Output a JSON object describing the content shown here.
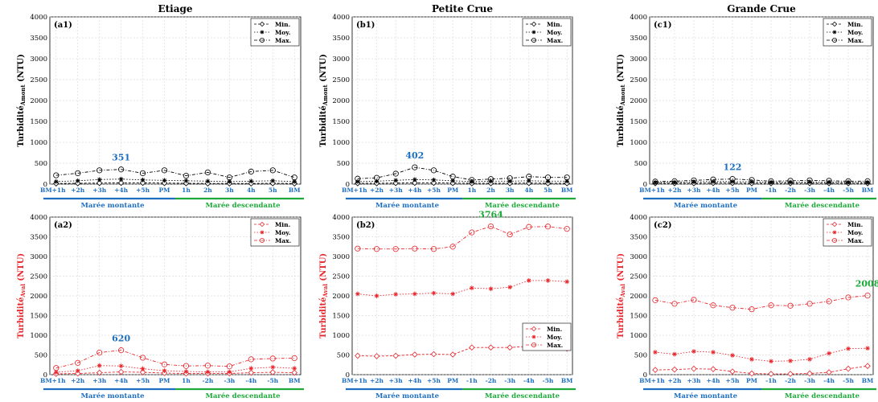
{
  "chart_data": [
    {
      "id": "a1",
      "type": "line",
      "title": "Etiage",
      "panel_label": "(a1)",
      "ylabel_main": "Turbidité",
      "ylabel_sub": "Amont",
      "ylabel_unit": " (NTU)",
      "ylim": [
        0,
        4000
      ],
      "yticks": [
        0,
        500,
        1000,
        1500,
        2000,
        2500,
        3000,
        3500,
        4000
      ],
      "categories": [
        "BM+1h",
        "+2h",
        "+3h",
        "+4h",
        "+5h",
        "PM",
        "1h",
        "2h",
        "3h",
        "4h",
        "5h",
        "BM"
      ],
      "series": [
        {
          "name": "Min.",
          "marker": "diamond",
          "values": [
            15,
            20,
            25,
            30,
            30,
            25,
            20,
            15,
            15,
            15,
            20,
            15
          ]
        },
        {
          "name": "Moy.",
          "marker": "star",
          "values": [
            60,
            80,
            110,
            120,
            100,
            90,
            80,
            70,
            60,
            70,
            80,
            60
          ]
        },
        {
          "name": "Max.",
          "marker": "circle",
          "values": [
            210,
            260,
            330,
            351,
            260,
            330,
            200,
            280,
            160,
            300,
            330,
            160
          ]
        }
      ],
      "annotation": {
        "text": "351",
        "index": 3,
        "value": 351
      },
      "phases": [
        {
          "label": "Marée montante",
          "color": "#1f6fc1"
        },
        {
          "label": "Marée descendante",
          "color": "#1faa3b"
        }
      ]
    },
    {
      "id": "b1",
      "type": "line",
      "title": "Petite Crue",
      "panel_label": "(b1)",
      "ylabel_main": "Turbidité",
      "ylabel_sub": "Amont",
      "ylabel_unit": " (NTU)",
      "ylim": [
        0,
        4000
      ],
      "yticks": [
        0,
        500,
        1000,
        1500,
        2000,
        2500,
        3000,
        3500,
        4000
      ],
      "categories": [
        "BM+1h",
        "+2h",
        "+3h",
        "+4h",
        "+5h",
        "PM",
        "1h",
        "2h",
        "3h",
        "4h",
        "5h",
        "BM"
      ],
      "series": [
        {
          "name": "Min.",
          "marker": "diamond",
          "values": [
            20,
            20,
            25,
            30,
            30,
            25,
            20,
            20,
            20,
            25,
            20,
            20
          ]
        },
        {
          "name": "Moy.",
          "marker": "star",
          "values": [
            60,
            70,
            90,
            110,
            100,
            80,
            60,
            70,
            70,
            80,
            70,
            70
          ]
        },
        {
          "name": "Max.",
          "marker": "circle",
          "values": [
            130,
            150,
            250,
            402,
            330,
            180,
            100,
            120,
            140,
            180,
            160,
            160
          ]
        }
      ],
      "annotation": {
        "text": "402",
        "index": 3,
        "value": 402
      },
      "phases": [
        {
          "label": "Marée montante",
          "color": "#1f6fc1"
        },
        {
          "label": "Marée descendante",
          "color": "#1faa3b"
        }
      ]
    },
    {
      "id": "c1",
      "type": "line",
      "title": "Grande Crue",
      "panel_label": "(c1)",
      "ylabel_main": "Turbidité",
      "ylabel_sub": "Amont",
      "ylabel_unit": " (NTU)",
      "ylim": [
        0,
        4000
      ],
      "yticks": [
        0,
        500,
        1000,
        1500,
        2000,
        2500,
        3000,
        3500,
        4000
      ],
      "categories": [
        "BM+1h",
        "+2h",
        "+3h",
        "+4h",
        "+5h",
        "PM",
        "-1h",
        "-2h",
        "-3h",
        "-4h",
        "-5h",
        "BM"
      ],
      "series": [
        {
          "name": "Min.",
          "marker": "diamond",
          "values": [
            20,
            20,
            20,
            25,
            25,
            20,
            20,
            20,
            20,
            20,
            20,
            20
          ]
        },
        {
          "name": "Moy.",
          "marker": "star",
          "values": [
            40,
            45,
            55,
            60,
            60,
            55,
            45,
            45,
            50,
            45,
            45,
            40
          ]
        },
        {
          "name": "Max.",
          "marker": "circle",
          "values": [
            60,
            70,
            90,
            110,
            122,
            100,
            70,
            80,
            90,
            80,
            70,
            70
          ]
        }
      ],
      "annotation": {
        "text": "122",
        "index": 4,
        "value": 122
      },
      "phases": [
        {
          "label": "Marée montante",
          "color": "#1f6fc1"
        },
        {
          "label": "Marée descendante",
          "color": "#1faa3b"
        }
      ]
    },
    {
      "id": "a2",
      "type": "line",
      "panel_label": "(a2)",
      "ylabel_main": "Turbidité",
      "ylabel_sub": "Aval",
      "ylabel_unit": " (NTU)",
      "ylim": [
        0,
        4000
      ],
      "yticks": [
        0,
        500,
        1000,
        1500,
        2000,
        2500,
        3000,
        3500,
        4000
      ],
      "categories": [
        "BM+1h",
        "+2h",
        "+3h",
        "+4h",
        "+5h",
        "PM",
        "1h",
        "-2h",
        "-3h",
        "-4h",
        "-5h",
        "BM"
      ],
      "series": [
        {
          "name": "Min.",
          "marker": "diamond",
          "values": [
            20,
            30,
            50,
            70,
            60,
            40,
            30,
            30,
            30,
            50,
            60,
            50
          ]
        },
        {
          "name": "Moy.",
          "marker": "star",
          "values": [
            60,
            100,
            230,
            220,
            150,
            100,
            80,
            70,
            70,
            160,
            190,
            160
          ]
        },
        {
          "name": "Max.",
          "marker": "circle",
          "values": [
            170,
            300,
            560,
            620,
            430,
            260,
            220,
            230,
            210,
            390,
            410,
            420
          ]
        }
      ],
      "annotation": {
        "text": "620",
        "index": 3,
        "value": 620
      },
      "legend_position": "top-right",
      "phases": [
        {
          "label": "Marée montante",
          "color": "#1f6fc1"
        },
        {
          "label": "Marée descendante",
          "color": "#1faa3b"
        }
      ]
    },
    {
      "id": "b2",
      "type": "line",
      "panel_label": "(b2)",
      "ylabel_main": "Turbidité",
      "ylabel_sub": "Aval",
      "ylabel_unit": " (NTU)",
      "ylim": [
        0,
        4000
      ],
      "yticks": [
        0,
        500,
        1000,
        1500,
        2000,
        2500,
        3000,
        3500,
        4000
      ],
      "categories": [
        "BM+1h",
        "+2h",
        "+3h",
        "+4h",
        "+5h",
        "PM",
        "-1h",
        "-2h",
        "-3h",
        "-4h",
        "-5h",
        "BM"
      ],
      "series": [
        {
          "name": "Min.",
          "marker": "diamond",
          "values": [
            480,
            470,
            480,
            510,
            520,
            510,
            690,
            690,
            690,
            720,
            690,
            660
          ]
        },
        {
          "name": "Moy.",
          "marker": "star",
          "values": [
            2050,
            2000,
            2040,
            2050,
            2070,
            2050,
            2200,
            2180,
            2220,
            2390,
            2390,
            2360
          ]
        },
        {
          "name": "Max.",
          "marker": "circle",
          "values": [
            3200,
            3190,
            3190,
            3200,
            3190,
            3250,
            3610,
            3764,
            3560,
            3750,
            3760,
            3700
          ]
        }
      ],
      "annotation": {
        "text": "3764",
        "index": 7,
        "value": 3764
      },
      "legend_position": "bottom-right",
      "phases": [
        {
          "label": "Marée montante",
          "color": "#1f6fc1"
        },
        {
          "label": "Marée descendante",
          "color": "#1faa3b"
        }
      ]
    },
    {
      "id": "c2",
      "type": "line",
      "panel_label": "(c2)",
      "ylabel_main": "Turbidité",
      "ylabel_sub": "Aval",
      "ylabel_unit": " (NTU)",
      "ylim": [
        0,
        4000
      ],
      "yticks": [
        0,
        500,
        1000,
        1500,
        2000,
        2500,
        3000,
        3500,
        4000
      ],
      "categories": [
        "BM+1h",
        "+2h",
        "+3h",
        "+4h",
        "+5h",
        "PM",
        "-1h",
        "-2h",
        "-3h",
        "-4h",
        "-5h",
        "BM"
      ],
      "series": [
        {
          "name": "Min.",
          "marker": "diamond",
          "values": [
            120,
            130,
            150,
            140,
            80,
            30,
            20,
            20,
            30,
            60,
            150,
            220
          ]
        },
        {
          "name": "Moy.",
          "marker": "star",
          "values": [
            570,
            520,
            590,
            570,
            490,
            390,
            340,
            350,
            390,
            540,
            660,
            670
          ]
        },
        {
          "name": "Max.",
          "marker": "circle",
          "values": [
            1890,
            1800,
            1900,
            1760,
            1700,
            1660,
            1760,
            1750,
            1800,
            1860,
            1960,
            2008
          ]
        }
      ],
      "annotation": {
        "text": "2008",
        "index": 11,
        "value": 2008
      },
      "legend_position": "top-right",
      "phases": [
        {
          "label": "Marée montante",
          "color": "#1f6fc1"
        },
        {
          "label": "Marée descendante",
          "color": "#1faa3b"
        }
      ]
    }
  ],
  "style": {
    "amont_color": "#000000",
    "aval_color": "#e8252b",
    "annotation_color_top": "#1f6fc1",
    "annotation_color_bottom": "#1f6fc1",
    "annotation_color_b2": "#1faa3b",
    "annotation_color_c2": "#1faa3b",
    "xtick_color": "#1f6fc1",
    "grid": true
  }
}
